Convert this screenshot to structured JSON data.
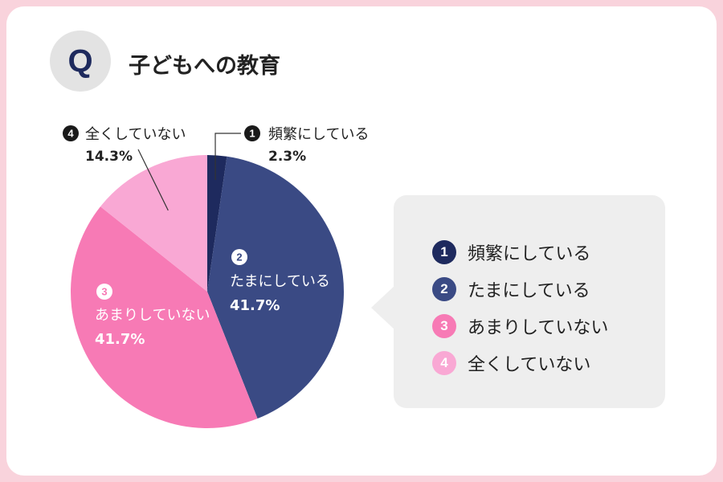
{
  "header": {
    "badge": "Q",
    "title": "子どもへの教育"
  },
  "colors": {
    "frame": "#f9d3dc",
    "slice_1": "#1e2a5e",
    "slice_2": "#3a4a84",
    "slice_3": "#f77ab5",
    "slice_4": "#f9a8d4"
  },
  "chart_data": {
    "type": "pie",
    "title": "子どもへの教育",
    "slices": [
      {
        "num": "1",
        "label": "頻繁にしている",
        "value": 2.3,
        "value_label": "2.3%",
        "color": "#1e2a5e"
      },
      {
        "num": "2",
        "label": "たまにしている",
        "value": 41.7,
        "value_label": "41.7%",
        "color": "#3a4a84"
      },
      {
        "num": "3",
        "label": "あまりしていない",
        "value": 41.7,
        "value_label": "41.7%",
        "color": "#f77ab5"
      },
      {
        "num": "4",
        "label": "全くしていない",
        "value": 14.3,
        "value_label": "14.3%",
        "color": "#f9a8d4"
      }
    ],
    "legend_position": "right"
  },
  "legend": {
    "items": [
      {
        "num": "1",
        "label": "頻繁にしている"
      },
      {
        "num": "2",
        "label": "たまにしている"
      },
      {
        "num": "3",
        "label": "あまりしていない"
      },
      {
        "num": "4",
        "label": "全くしていない"
      }
    ]
  }
}
